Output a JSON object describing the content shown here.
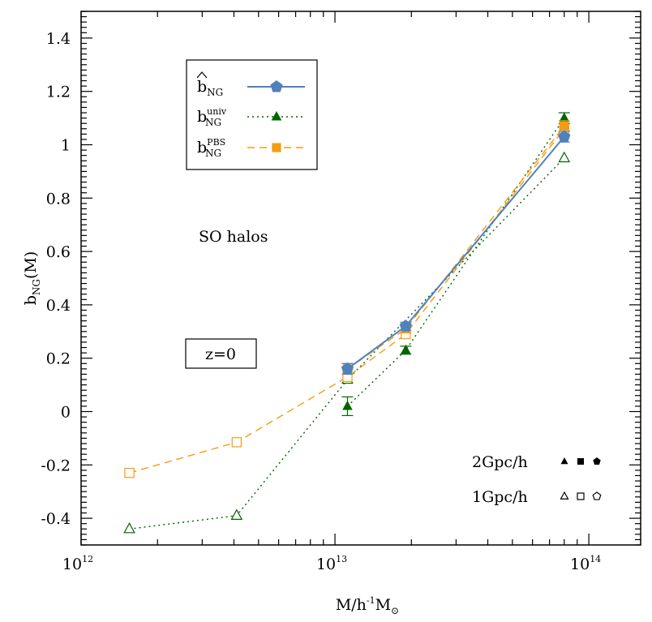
{
  "chart_data": {
    "type": "line",
    "xscale": "log",
    "xlim": [
      1000000000000.0,
      160000000000000.0
    ],
    "ylim": [
      -0.5,
      1.5
    ],
    "x_ticks": [
      {
        "value": 1000000000000.0,
        "base": "10",
        "exp": "12"
      },
      {
        "value": 10000000000000.0,
        "base": "10",
        "exp": "13"
      },
      {
        "value": 100000000000000.0,
        "base": "10",
        "exp": "14"
      }
    ],
    "y_ticks": [
      "-0.4",
      "-0.2",
      "0",
      "0.2",
      "0.4",
      "0.6",
      "0.8",
      "1",
      "1.2",
      "1.4"
    ],
    "xlabel": {
      "main": "M/h",
      "sup": "-1",
      "tail": "M",
      "sub": "⊙"
    },
    "ylabel": {
      "main": "b",
      "sub": "NG",
      "tail": "(M)"
    },
    "series": [
      {
        "key": "hat",
        "legend": {
          "main": "b",
          "sub": "NG",
          "sup": "",
          "hat": true
        },
        "color": "#4f81bd",
        "dash": "",
        "marker": "pentagon",
        "points_2gpc": [
          {
            "x": 11200000000000.0,
            "y": 0.16,
            "err": 0.02
          },
          {
            "x": 19000000000000.0,
            "y": 0.32,
            "err": 0.015
          },
          {
            "x": 80000000000000.0,
            "y": 1.03,
            "err": 0.02
          }
        ],
        "points_1gpc": []
      },
      {
        "key": "univ",
        "legend": {
          "main": "b",
          "sub": "NG",
          "sup": "univ",
          "hat": false
        },
        "color": "#006400",
        "dash": "2,4",
        "marker": "triangle",
        "points_2gpc": [
          {
            "x": 11200000000000.0,
            "y": 0.02,
            "err": 0.035
          },
          {
            "x": 19000000000000.0,
            "y": 0.23,
            "err": 0.015
          },
          {
            "x": 80000000000000.0,
            "y": 1.1,
            "err": 0.02
          }
        ],
        "points_1gpc": [
          {
            "x": 1550000000000.0,
            "y": -0.44
          },
          {
            "x": 4100000000000.0,
            "y": -0.39
          },
          {
            "x": 11200000000000.0,
            "y": 0.12
          },
          {
            "x": 80000000000000.0,
            "y": 0.95
          }
        ]
      },
      {
        "key": "pbs",
        "legend": {
          "main": "b",
          "sub": "NG",
          "sup": "PBS",
          "hat": false
        },
        "color": "#f39c12",
        "dash": "9,6",
        "marker": "square",
        "points_2gpc": [
          {
            "x": 11200000000000.0,
            "y": 0.16,
            "err": 0.02
          },
          {
            "x": 19000000000000.0,
            "y": 0.31,
            "err": 0.015
          },
          {
            "x": 80000000000000.0,
            "y": 1.07,
            "err": 0.02
          }
        ],
        "points_1gpc": [
          {
            "x": 1550000000000.0,
            "y": -0.23
          },
          {
            "x": 4100000000000.0,
            "y": -0.115
          },
          {
            "x": 11200000000000.0,
            "y": 0.13
          },
          {
            "x": 19000000000000.0,
            "y": 0.29
          },
          {
            "x": 80000000000000.0,
            "y": 1.06
          }
        ]
      }
    ],
    "annotations": {
      "halo_type": "SO halos",
      "redshift": "z=0",
      "box_2gpc": "2Gpc/h",
      "box_1gpc": "1Gpc/h"
    },
    "legend_position": "top-left",
    "grid": false
  }
}
